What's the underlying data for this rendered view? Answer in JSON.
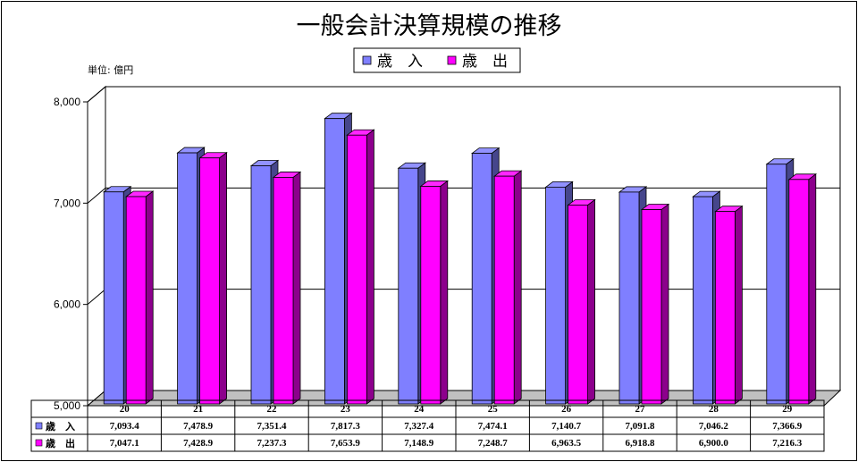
{
  "chart_data": {
    "type": "bar",
    "title": "一般会計決算規模の推移",
    "unit_label": "単位: 億円",
    "categories": [
      "20",
      "21",
      "22",
      "23",
      "24",
      "25",
      "26",
      "27",
      "28",
      "29"
    ],
    "ylim": [
      5000,
      8000
    ],
    "yticks": [
      "5,000",
      "6,000",
      "7,000",
      "8,000"
    ],
    "ytick_values": [
      5000,
      6000,
      7000,
      8000
    ],
    "grid": true,
    "legend_position": "top-center",
    "series": [
      {
        "name": "歳　入",
        "color": "#7f7fff",
        "values": [
          7093.4,
          7478.9,
          7351.4,
          7817.3,
          7327.4,
          7474.1,
          7140.7,
          7091.8,
          7046.2,
          7366.9
        ],
        "labels": [
          "7,093.4",
          "7,478.9",
          "7,351.4",
          "7,817.3",
          "7,327.4",
          "7,474.1",
          "7,140.7",
          "7,091.8",
          "7,046.2",
          "7,366.9"
        ]
      },
      {
        "name": "歳　出",
        "color": "#ff00ff",
        "values": [
          7047.1,
          7428.9,
          7237.3,
          7653.9,
          7148.9,
          7248.7,
          6963.5,
          6918.8,
          6900.0,
          7216.3
        ],
        "labels": [
          "7,047.1",
          "7,428.9",
          "7,237.3",
          "7,653.9",
          "7,148.9",
          "7,248.7",
          "6,963.5",
          "6,918.8",
          "6,900.0",
          "7,216.3"
        ]
      }
    ]
  }
}
